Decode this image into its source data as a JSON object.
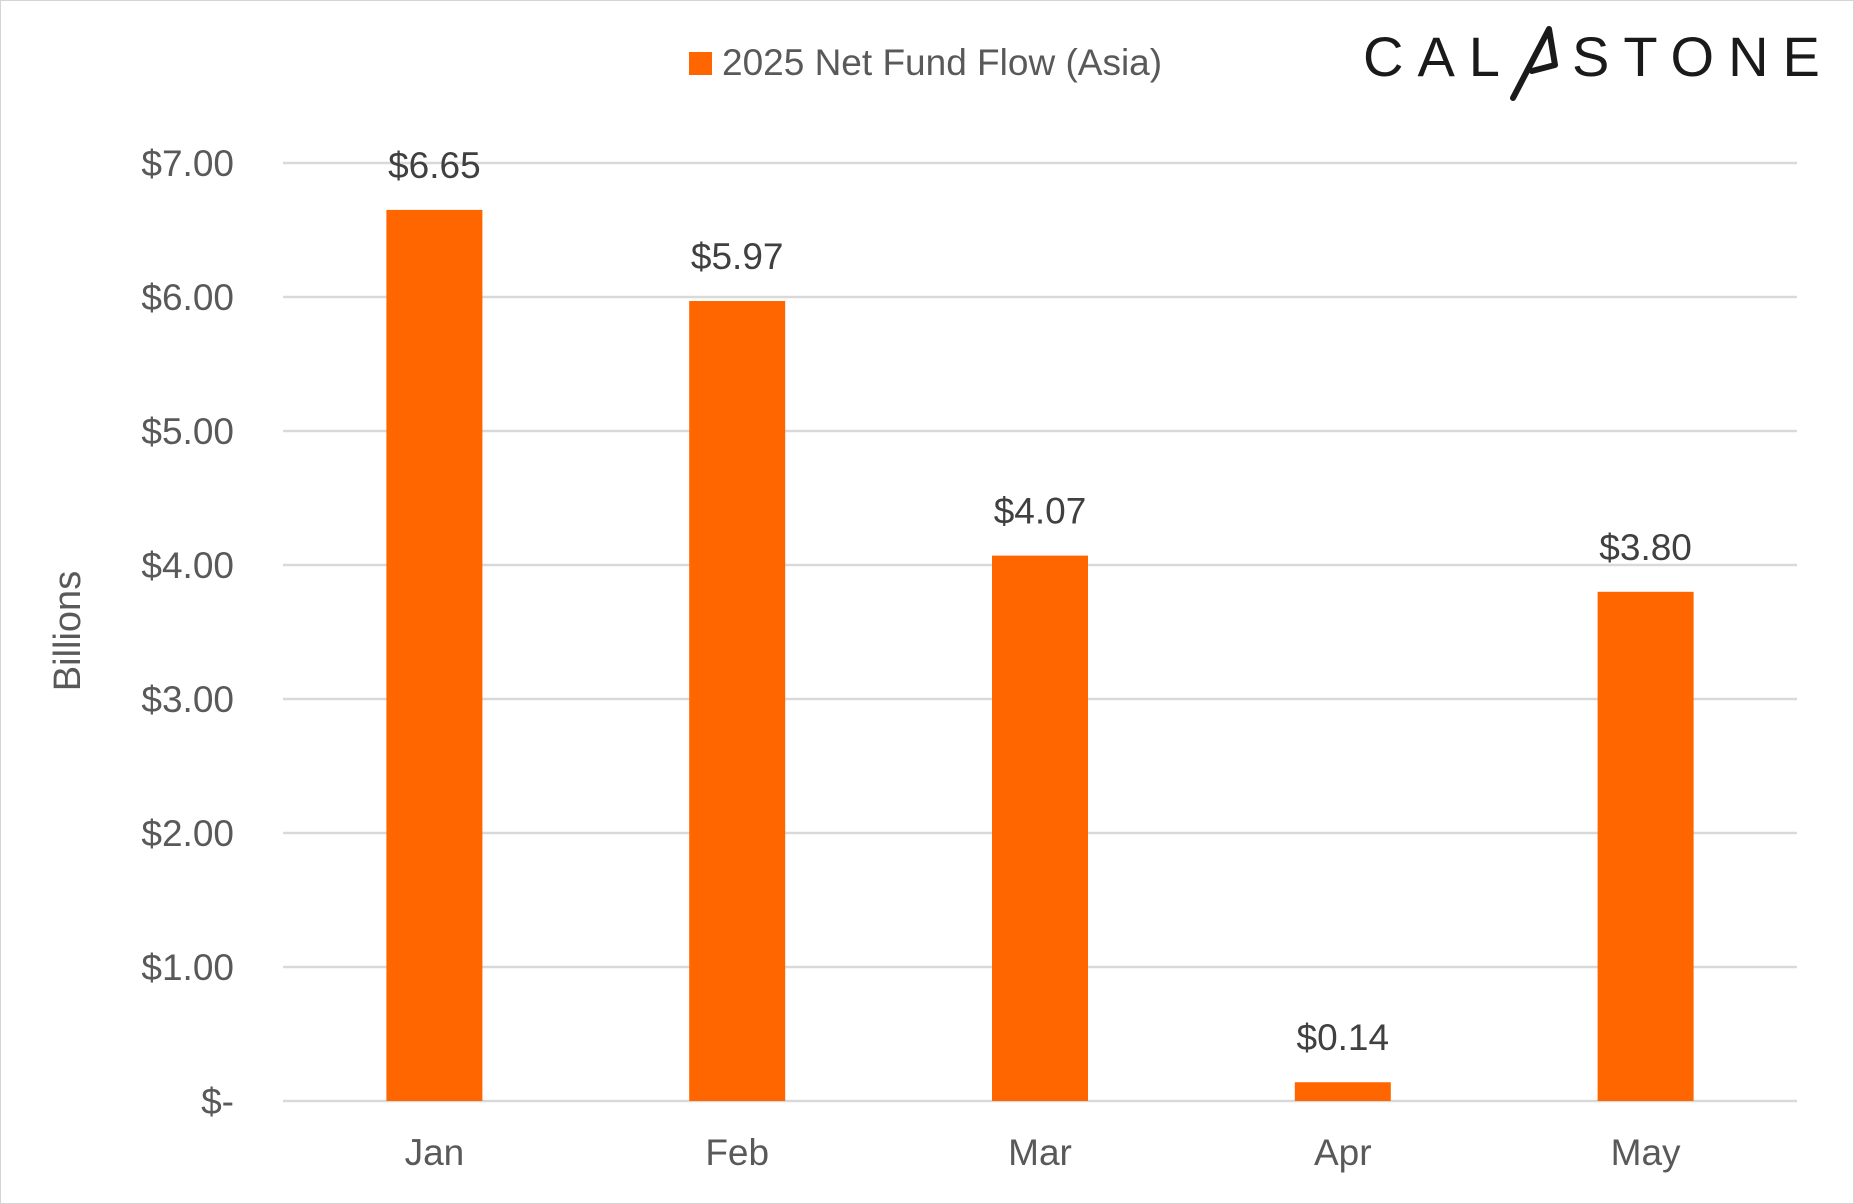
{
  "brand": {
    "logo_left": "CAL",
    "logo_right": "STONE",
    "logo_text": "CALASTONE"
  },
  "chart_data": {
    "type": "bar",
    "categories": [
      "Jan",
      "Feb",
      "Mar",
      "Apr",
      "May"
    ],
    "series": [
      {
        "name": "2025 Net Fund Flow (Asia)",
        "values": [
          6.65,
          5.97,
          4.07,
          0.14,
          3.8
        ],
        "data_labels": [
          "$6.65",
          "$5.97",
          "$4.07",
          "$0.14",
          "$3.80"
        ],
        "color": "#FF6600"
      }
    ],
    "ylabel": "Billions",
    "xlabel": "",
    "ylim": [
      0,
      7
    ],
    "yticks": [
      0,
      1,
      2,
      3,
      4,
      5,
      6,
      7
    ],
    "ytick_labels": [
      "$-",
      "$1.00",
      "$2.00",
      "$3.00",
      "$4.00",
      "$5.00",
      "$6.00",
      "$7.00"
    ],
    "grid": true,
    "legend_position": "top-center",
    "gridline_color": "#D9D9D9"
  }
}
